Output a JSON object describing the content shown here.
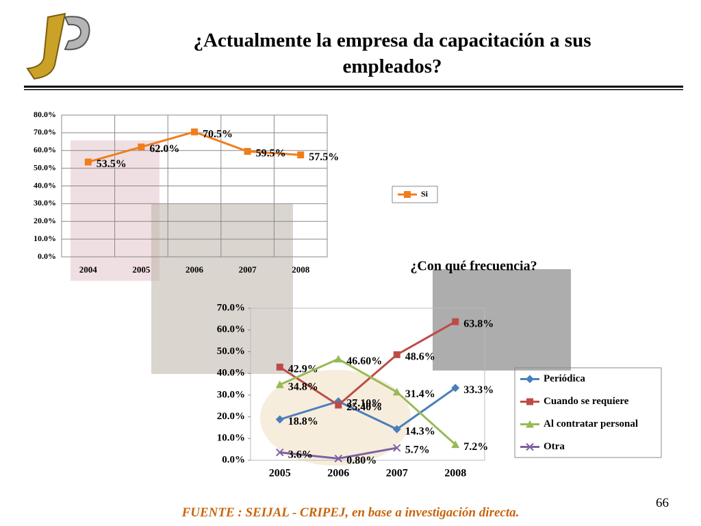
{
  "title": "¿Actualmente la empresa da capacitación a sus empleados?",
  "source": "FUENTE :  SEIJAL - CRIPEJ,  en base a investigación directa.",
  "page_number": "66",
  "chart_data": [
    {
      "type": "line",
      "categories": [
        "2004",
        "2005",
        "2006",
        "2007",
        "2008"
      ],
      "series": [
        {
          "name": "Si",
          "color": "#f07d1c",
          "values": [
            53.5,
            62.0,
            70.5,
            59.5,
            57.5
          ],
          "value_labels": [
            "53.5%",
            "62.0%",
            "70.5%",
            "59.5%",
            "57.5%"
          ]
        }
      ],
      "ylim": [
        0,
        80
      ],
      "yticks": [
        {
          "value": 0,
          "label": "0.0%"
        },
        {
          "value": 10,
          "label": "10.0%"
        },
        {
          "value": 20,
          "label": "20.0%"
        },
        {
          "value": 30,
          "label": "30.0%"
        },
        {
          "value": 40,
          "label": "40.0%"
        },
        {
          "value": 50,
          "label": "50.0%"
        },
        {
          "value": 60,
          "label": "60.0%"
        },
        {
          "value": 70,
          "label": "70.0%"
        },
        {
          "value": 80,
          "label": "80.0%"
        }
      ],
      "grid": true,
      "legend": "right"
    },
    {
      "type": "line",
      "title": "¿Con qué frecuencia?",
      "categories": [
        "2005",
        "2006",
        "2007",
        "2008"
      ],
      "series": [
        {
          "name": "Periódica",
          "color": "#4a7ebb",
          "marker": "diamond",
          "values": [
            18.8,
            27.1,
            14.3,
            33.3
          ],
          "value_labels": [
            "18.8%",
            "27.10%",
            "14.3%",
            "33.3%"
          ]
        },
        {
          "name": "Cuando se requiere",
          "color": "#be4b48",
          "marker": "square",
          "values": [
            42.9,
            25.4,
            48.6,
            63.8
          ],
          "value_labels": [
            "42.9%",
            "25.40%",
            "48.6%",
            "63.8%"
          ]
        },
        {
          "name": "Al contratar personal",
          "color": "#98b954",
          "marker": "triangle",
          "values": [
            34.8,
            46.6,
            31.4,
            7.2
          ],
          "value_labels": [
            "34.8%",
            "46.60%",
            "31.4%",
            "7.2%"
          ]
        },
        {
          "name": "Otra",
          "color": "#7d60a0",
          "marker": "x",
          "values": [
            3.6,
            0.8,
            5.7,
            null
          ],
          "value_labels": [
            "3.6%",
            "0.80%",
            "5.7%",
            null
          ]
        }
      ],
      "ylim": [
        0,
        70
      ],
      "yticks": [
        {
          "value": 0,
          "label": "0.0%"
        },
        {
          "value": 10,
          "label": "10.0%"
        },
        {
          "value": 20,
          "label": "20.0%"
        },
        {
          "value": 30,
          "label": "30.0%"
        },
        {
          "value": 40,
          "label": "40.0%"
        },
        {
          "value": 50,
          "label": "50.0%"
        },
        {
          "value": 60,
          "label": "60.0%"
        },
        {
          "value": 70,
          "label": "70.0%"
        }
      ],
      "grid": false,
      "legend": "right"
    }
  ]
}
